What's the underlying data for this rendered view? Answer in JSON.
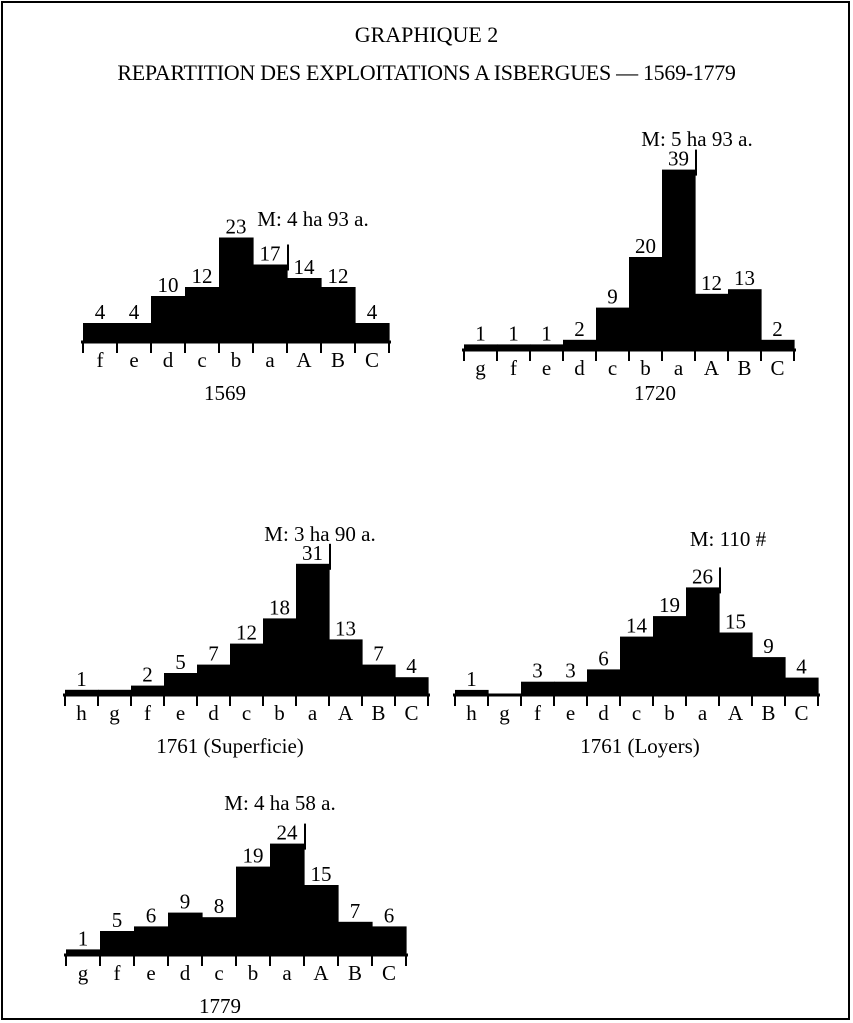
{
  "header": {
    "title": "GRAPHIQUE 2",
    "subtitle": "REPARTITION DES EXPLOITATIONS A ISBERGUES — 1569-1779"
  },
  "chart_data": [
    {
      "type": "bar",
      "title": "1569",
      "mean": "M: 4 ha 93 a.",
      "categories": [
        "f",
        "e",
        "d",
        "c",
        "b",
        "a",
        "A",
        "B",
        "C"
      ],
      "values": [
        4,
        4,
        10,
        12,
        23,
        17,
        14,
        12,
        4
      ],
      "mean_marker_index": 5
    },
    {
      "type": "bar",
      "title": "1720",
      "mean": "M: 5 ha 93 a.",
      "categories": [
        "g",
        "f",
        "e",
        "d",
        "c",
        "b",
        "a",
        "A",
        "B",
        "C"
      ],
      "values": [
        1,
        1,
        1,
        2,
        9,
        20,
        39,
        12,
        13,
        2
      ],
      "mean_marker_index": 6
    },
    {
      "type": "bar",
      "title": "1761 (Superficie)",
      "mean": "M: 3 ha 90 a.",
      "categories": [
        "h",
        "g",
        "f",
        "e",
        "d",
        "c",
        "b",
        "a",
        "A",
        "B",
        "C"
      ],
      "values": [
        1,
        1,
        2,
        5,
        7,
        12,
        18,
        31,
        13,
        7,
        4
      ],
      "value_labels": [
        "1",
        "",
        "2",
        "5",
        "7",
        "12",
        "18",
        "31",
        "13",
        "7",
        "4"
      ],
      "mean_marker_index": 7
    },
    {
      "type": "bar",
      "title": "1761 (Loyers)",
      "mean": "M: 110 #",
      "categories": [
        "h",
        "g",
        "f",
        "e",
        "d",
        "c",
        "b",
        "a",
        "A",
        "B",
        "C"
      ],
      "values": [
        1,
        0,
        3,
        3,
        6,
        14,
        19,
        26,
        15,
        9,
        4
      ],
      "value_labels": [
        "1",
        "",
        "3",
        "3",
        "6",
        "14",
        "19",
        "26",
        "15",
        "9",
        "4"
      ],
      "mean_marker_index": 7
    },
    {
      "type": "bar",
      "title": "1779",
      "mean": "M: 4 ha 58 a.",
      "categories": [
        "g",
        "f",
        "e",
        "d",
        "c",
        "b",
        "a",
        "A",
        "B",
        "C"
      ],
      "values": [
        1,
        5,
        6,
        9,
        8,
        19,
        24,
        15,
        7,
        6
      ],
      "mean_marker_index": 6
    }
  ]
}
